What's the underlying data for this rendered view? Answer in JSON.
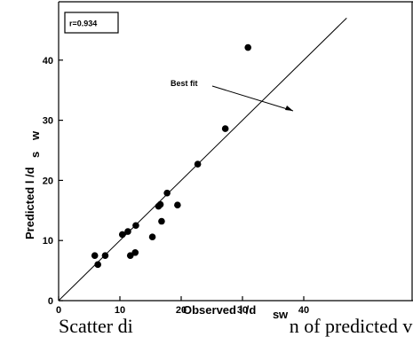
{
  "chart_data": {
    "type": "scatter",
    "xlabel": "Observed l /d",
    "xlabel_sub": "s",
    "xlabel_sub2": "w",
    "ylabel": "Predicted l /d",
    "ylabel_sub": "s",
    "ylabel_sub2": "w",
    "xlim": [
      0,
      47
    ],
    "ylim": [
      0,
      47
    ],
    "xticks": [
      0,
      10,
      20,
      30,
      40
    ],
    "yticks": [
      0,
      10,
      20,
      30,
      40
    ],
    "legend_text": "r=0.934",
    "legend_placement": "top-left",
    "annotation": {
      "text": "Best fit",
      "target": [
        31,
        31
      ]
    },
    "fit_line": {
      "from": [
        0,
        0
      ],
      "to": [
        47,
        47
      ]
    },
    "points": [
      {
        "x": 5.9,
        "y": 7.5
      },
      {
        "x": 6.4,
        "y": 6.0
      },
      {
        "x": 7.6,
        "y": 7.5
      },
      {
        "x": 10.4,
        "y": 11.0
      },
      {
        "x": 11.3,
        "y": 11.5
      },
      {
        "x": 11.7,
        "y": 7.5
      },
      {
        "x": 12.5,
        "y": 8.0
      },
      {
        "x": 12.6,
        "y": 12.5
      },
      {
        "x": 15.3,
        "y": 10.6
      },
      {
        "x": 16.3,
        "y": 15.7
      },
      {
        "x": 16.6,
        "y": 16.0
      },
      {
        "x": 16.8,
        "y": 13.2
      },
      {
        "x": 17.7,
        "y": 17.9
      },
      {
        "x": 19.4,
        "y": 15.9
      },
      {
        "x": 22.7,
        "y": 22.7
      },
      {
        "x": 27.2,
        "y": 28.6
      },
      {
        "x": 30.9,
        "y": 42.1
      }
    ]
  },
  "caption": {
    "left": "Scatter di",
    "right": "n of predicted v"
  }
}
